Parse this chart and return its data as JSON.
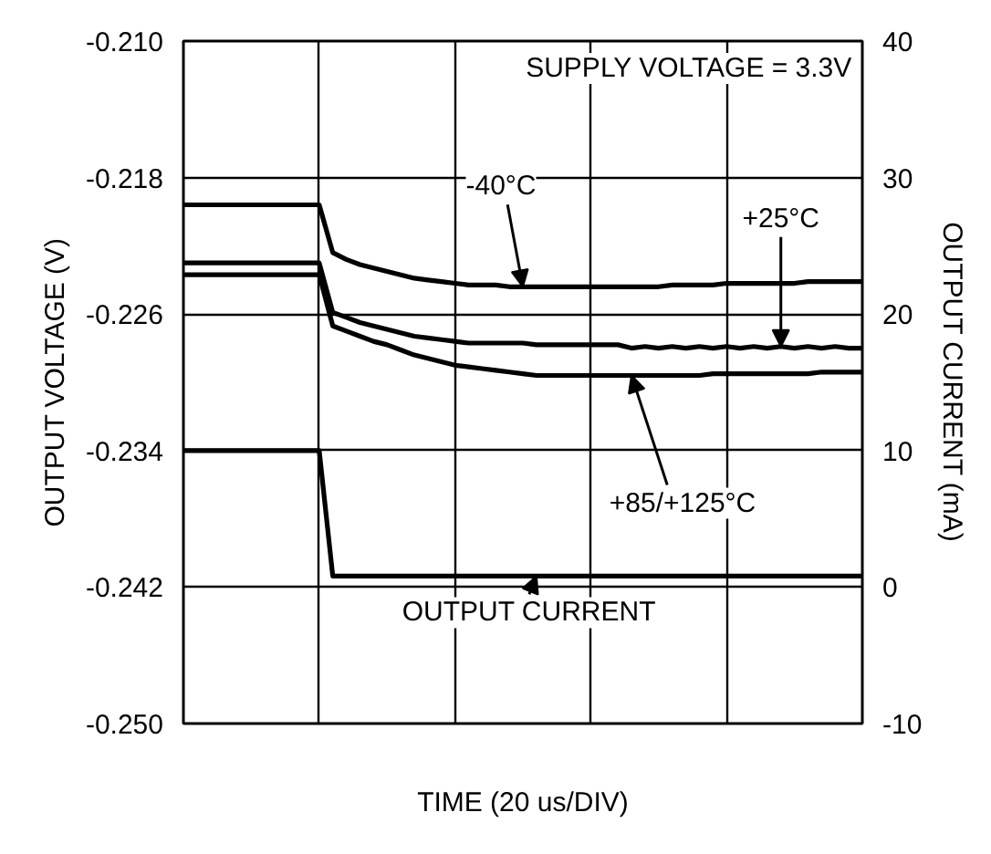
{
  "chart_data": {
    "type": "line",
    "xlabel": "TIME (20 us/DIV)",
    "ylabel": "OUTPUT VOLTAGE (V)",
    "y2label": "OUTPUT CURRENT (mA)",
    "categories": [
      null,
      null,
      null,
      null,
      null,
      null,
      null,
      null,
      null,
      null,
      null,
      null,
      null,
      null,
      null,
      null,
      null,
      null,
      null,
      null,
      null,
      null,
      null,
      null,
      null,
      null,
      null,
      null,
      null,
      null,
      null,
      null,
      null,
      null,
      null,
      null,
      null,
      null,
      null,
      null,
      null,
      null,
      null,
      null,
      null,
      null,
      null,
      null,
      null,
      null,
      null
    ],
    "series": [
      {
        "color": "#000000",
        "values": [
          -0.2196,
          -0.2196,
          -0.2196,
          -0.2196,
          -0.2196,
          -0.2196,
          -0.2196,
          -0.2196,
          -0.2196,
          -0.2196,
          -0.2196,
          -0.2224,
          -0.2228,
          -0.2231,
          -0.2233,
          -0.2235,
          -0.2237,
          -0.2239,
          -0.224,
          -0.2241,
          -0.2242,
          -0.2243,
          -0.2243,
          -0.2243,
          -0.2244,
          -0.2244,
          -0.2244,
          -0.2244,
          -0.2244,
          -0.2244,
          -0.2244,
          -0.2244,
          -0.2244,
          -0.2244,
          -0.2244,
          -0.2244,
          -0.2243,
          -0.2243,
          -0.2243,
          -0.2243,
          -0.2242,
          -0.2242,
          -0.2242,
          -0.2242,
          -0.2242,
          -0.2242,
          -0.2241,
          -0.2241,
          -0.2241,
          -0.2241,
          -0.2241
        ]
      },
      {
        "color": "#000000",
        "values": [
          -0.223,
          -0.223,
          -0.223,
          -0.223,
          -0.223,
          -0.223,
          -0.223,
          -0.223,
          -0.223,
          -0.223,
          -0.223,
          -0.2259,
          -0.2262,
          -0.2265,
          -0.2267,
          -0.2269,
          -0.2271,
          -0.2273,
          -0.2274,
          -0.2275,
          -0.2276,
          -0.2277,
          -0.2277,
          -0.2277,
          -0.2277,
          -0.2277,
          -0.2278,
          -0.2278,
          -0.2278,
          -0.2278,
          -0.2278,
          -0.2278,
          -0.2278,
          -0.228,
          -0.2279,
          -0.228,
          -0.2279,
          -0.228,
          -0.2279,
          -0.228,
          -0.2279,
          -0.228,
          -0.2279,
          -0.228,
          -0.2279,
          -0.228,
          -0.2279,
          -0.228,
          -0.2279,
          -0.228,
          -0.228
        ]
      },
      {
        "color": "#000000",
        "values": [
          -0.2237,
          -0.2237,
          -0.2237,
          -0.2237,
          -0.2237,
          -0.2237,
          -0.2237,
          -0.2237,
          -0.2237,
          -0.2237,
          -0.2237,
          -0.2267,
          -0.227,
          -0.2273,
          -0.2276,
          -0.2278,
          -0.2281,
          -0.2284,
          -0.2286,
          -0.2288,
          -0.229,
          -0.2291,
          -0.2292,
          -0.2293,
          -0.2294,
          -0.2295,
          -0.2296,
          -0.2296,
          -0.2296,
          -0.2296,
          -0.2296,
          -0.2296,
          -0.2296,
          -0.2296,
          -0.2296,
          -0.2296,
          -0.2296,
          -0.2296,
          -0.2296,
          -0.2295,
          -0.2295,
          -0.2295,
          -0.2295,
          -0.2295,
          -0.2295,
          -0.2295,
          -0.2295,
          -0.2294,
          -0.2294,
          -0.2294,
          -0.2294
        ]
      },
      {
        "color": "#000000",
        "axis": "y2",
        "values": [
          10,
          10,
          10,
          10,
          10,
          10,
          10,
          10,
          10,
          10,
          10,
          0.8,
          0.8,
          0.8,
          0.8,
          0.8,
          0.8,
          0.8,
          0.8,
          0.8,
          0.8,
          0.8,
          0.8,
          0.8,
          0.8,
          0.8,
          0.8,
          0.8,
          0.8,
          0.8,
          0.8,
          0.8,
          0.8,
          0.8,
          0.8,
          0.8,
          0.8,
          0.8,
          0.8,
          0.8,
          0.8,
          0.8,
          0.8,
          0.8,
          0.8,
          0.8,
          0.8,
          0.8,
          0.8,
          0.8,
          0.8
        ]
      }
    ],
    "ylim": [
      -0.25,
      -0.21
    ],
    "yticks": [
      {
        "value": -0.25,
        "label": "-0.250"
      },
      {
        "value": -0.242,
        "label": "-0.242"
      },
      {
        "value": -0.234,
        "label": "-0.234"
      },
      {
        "value": -0.226,
        "label": "-0.226"
      },
      {
        "value": -0.218,
        "label": "-0.218"
      },
      {
        "value": -0.21,
        "label": "-0.210"
      }
    ],
    "y2lim": [
      -10,
      40
    ],
    "y2ticks": [
      -10,
      0,
      10,
      20,
      30,
      40
    ],
    "grid": true,
    "annotations": [
      "SUPPLY VOLTAGE = 3.3V",
      "-40°C",
      "+25°C",
      "+85/+125°C",
      "OUTPUT CURRENT"
    ]
  }
}
